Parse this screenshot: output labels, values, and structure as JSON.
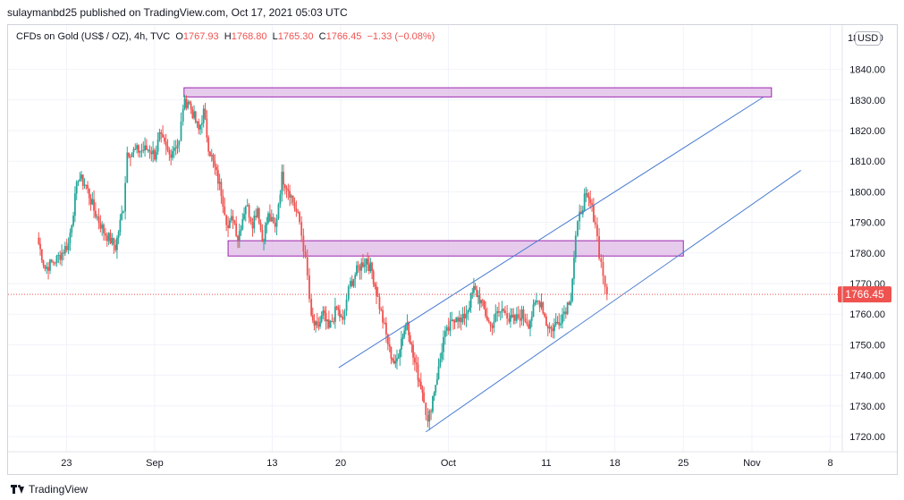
{
  "header": {
    "published": "sulaymanbd25 published on TradingView.com, Oct 17, 2021 05:03 UTC"
  },
  "legend": {
    "symbol": "CFDs on Gold (US$ / OZ), 4h, TVC",
    "open_label": "O",
    "open": "1767.93",
    "high_label": "H",
    "high": "1768.80",
    "low_label": "L",
    "low": "1765.30",
    "close_label": "C",
    "close": "1766.45",
    "change": "−1.33 (−0.08%)"
  },
  "currency_badge": "USD",
  "footer": {
    "brand": "TradingView"
  },
  "chart_data": {
    "type": "candlestick",
    "timeframe": "4h",
    "ylim": [
      1718,
      1850
    ],
    "y_ticks": [
      "1720.00",
      "1730.00",
      "1740.00",
      "1750.00",
      "1760.00",
      "1770.00",
      "1780.00",
      "1790.00",
      "1800.00",
      "1810.00",
      "1820.00",
      "1830.00",
      "1840.00"
    ],
    "x_ticks": [
      {
        "label": "23",
        "day": -8
      },
      {
        "label": "Sep",
        "day": 1
      },
      {
        "label": "13",
        "day": 13
      },
      {
        "label": "20",
        "day": 20
      },
      {
        "label": "Oct",
        "day": 31
      },
      {
        "label": "11",
        "day": 41
      },
      {
        "label": "18",
        "day": 48
      },
      {
        "label": "25",
        "day": 55
      },
      {
        "label": "Nov",
        "day": 62
      },
      {
        "label": "8",
        "day": 70
      }
    ],
    "last_price": "1766.45",
    "last_value": 1766.45,
    "colors": {
      "up": "#26a69a",
      "down": "#ef5350",
      "zone_fill": "#e1bee7",
      "zone_stroke": "#9c27b0",
      "channel": "#4a7dd1",
      "grid": "#f0f3fa",
      "price_label": "#ef5350"
    },
    "zones": [
      {
        "day_start": 4,
        "day_end": 64,
        "low": 1831,
        "high": 1834
      },
      {
        "day_start": 8.5,
        "day_end": 55,
        "low": 1779,
        "high": 1784
      }
    ],
    "trendlines": [
      {
        "d1": 19.8,
        "p1": 1742.5,
        "d2": 44.7,
        "p2": 1800.5,
        "d3": 63.2,
        "p3": 1831
      },
      {
        "d1": 28.7,
        "p1": 1721.5,
        "d2": 47,
        "p2": 1764,
        "d3": 67,
        "p3": 1807
      }
    ],
    "anchors": [
      [
        -11,
        1785
      ],
      [
        -10.2,
        1775
      ],
      [
        -9,
        1778
      ],
      [
        -7.8,
        1783
      ],
      [
        -6.8,
        1805
      ],
      [
        -6,
        1802
      ],
      [
        -5.2,
        1794
      ],
      [
        -4.2,
        1787
      ],
      [
        -3,
        1782
      ],
      [
        -2.2,
        1795
      ],
      [
        -1.8,
        1813
      ],
      [
        0.5,
        1814
      ],
      [
        1,
        1812
      ],
      [
        1.5,
        1818
      ],
      [
        2.5,
        1812
      ],
      [
        3,
        1815
      ],
      [
        3.5,
        1816
      ],
      [
        3.9,
        1828
      ],
      [
        4.4,
        1830
      ],
      [
        5.5,
        1820
      ],
      [
        6,
        1826
      ],
      [
        6.5,
        1815
      ],
      [
        7.8,
        1800
      ],
      [
        8.5,
        1788
      ],
      [
        9,
        1792
      ],
      [
        9.5,
        1785
      ],
      [
        10.3,
        1796
      ],
      [
        11,
        1790
      ],
      [
        11.5,
        1795
      ],
      [
        12,
        1784
      ],
      [
        12.6,
        1792
      ],
      [
        13.3,
        1788
      ],
      [
        14,
        1805
      ],
      [
        14.8,
        1800
      ],
      [
        15.3,
        1795
      ],
      [
        15.8,
        1790
      ],
      [
        16.2,
        1782
      ],
      [
        16.6,
        1772
      ],
      [
        17,
        1758
      ],
      [
        17.6,
        1755
      ],
      [
        18.2,
        1760
      ],
      [
        18.8,
        1755
      ],
      [
        19.6,
        1762
      ],
      [
        20.2,
        1757
      ],
      [
        20.6,
        1765
      ],
      [
        21,
        1770
      ],
      [
        21.8,
        1775
      ],
      [
        22.6,
        1778
      ],
      [
        23.2,
        1774
      ],
      [
        23.8,
        1765
      ],
      [
        24.3,
        1758
      ],
      [
        25,
        1748
      ],
      [
        25.6,
        1743
      ],
      [
        26.2,
        1752
      ],
      [
        26.8,
        1758
      ],
      [
        27.4,
        1746
      ],
      [
        27.9,
        1740
      ],
      [
        28.5,
        1733
      ],
      [
        28.9,
        1724
      ],
      [
        29.4,
        1733
      ],
      [
        30,
        1742
      ],
      [
        30.5,
        1752
      ],
      [
        31.2,
        1756
      ],
      [
        31.8,
        1760
      ],
      [
        32.3,
        1757
      ],
      [
        33,
        1762
      ],
      [
        33.6,
        1768
      ],
      [
        34.2,
        1765
      ],
      [
        34.8,
        1760
      ],
      [
        35.3,
        1756
      ],
      [
        36,
        1760
      ],
      [
        36.8,
        1762
      ],
      [
        37.2,
        1758
      ],
      [
        37.8,
        1758
      ],
      [
        38.5,
        1760
      ],
      [
        39.2,
        1757
      ],
      [
        40,
        1764
      ],
      [
        40.5,
        1764
      ],
      [
        41,
        1757
      ],
      [
        41.5,
        1755
      ],
      [
        42.3,
        1758
      ],
      [
        43,
        1762
      ],
      [
        43.5,
        1766
      ],
      [
        44,
        1785
      ],
      [
        44.4,
        1792
      ],
      [
        44.9,
        1798
      ],
      [
        45.5,
        1796
      ],
      [
        46,
        1790
      ],
      [
        46.4,
        1780
      ],
      [
        46.8,
        1773
      ],
      [
        47.2,
        1766.45
      ]
    ]
  }
}
